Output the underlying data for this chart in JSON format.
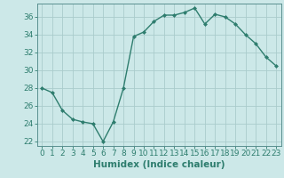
{
  "x": [
    0,
    1,
    2,
    3,
    4,
    5,
    6,
    7,
    8,
    9,
    10,
    11,
    12,
    13,
    14,
    15,
    16,
    17,
    18,
    19,
    20,
    21,
    22,
    23
  ],
  "y": [
    28.0,
    27.5,
    25.5,
    24.5,
    24.2,
    24.0,
    22.0,
    24.2,
    28.0,
    33.8,
    34.3,
    35.5,
    36.2,
    36.2,
    36.5,
    37.0,
    35.2,
    36.3,
    36.0,
    35.2,
    34.0,
    33.0,
    31.5,
    30.5
  ],
  "line_color": "#2e7d6e",
  "marker": "D",
  "marker_size": 2.0,
  "bg_color": "#cce8e8",
  "grid_color": "#aacccc",
  "xlabel": "Humidex (Indice chaleur)",
  "ylim": [
    21.5,
    37.5
  ],
  "xlim": [
    -0.5,
    23.5
  ],
  "yticks": [
    22,
    24,
    26,
    28,
    30,
    32,
    34,
    36
  ],
  "xticks": [
    0,
    1,
    2,
    3,
    4,
    5,
    6,
    7,
    8,
    9,
    10,
    11,
    12,
    13,
    14,
    15,
    16,
    17,
    18,
    19,
    20,
    21,
    22,
    23
  ],
  "xlabel_fontsize": 7.5,
  "tick_fontsize": 6.5,
  "line_width": 1.0,
  "axes_color": "#5a9090",
  "spine_color": "#5a9090"
}
